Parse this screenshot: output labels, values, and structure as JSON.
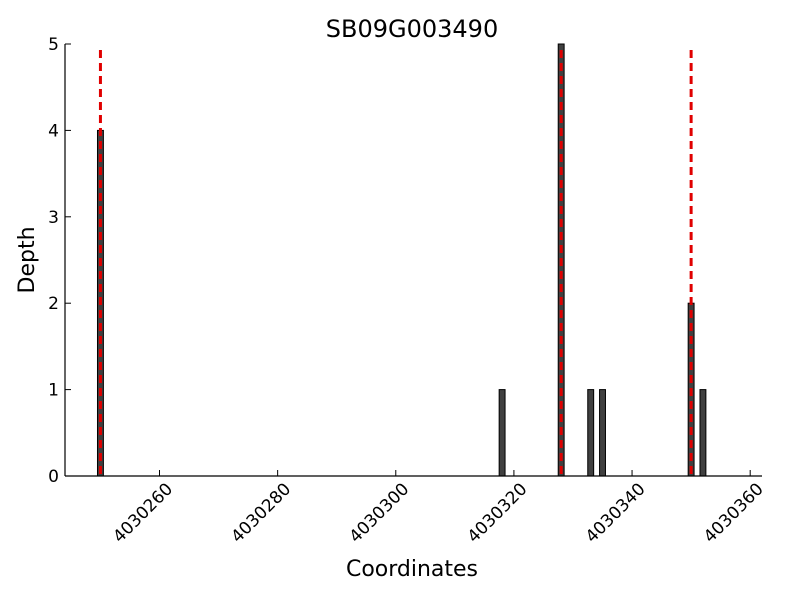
{
  "chart_data": {
    "type": "bar",
    "title": "SB09G003490",
    "xlabel": "Coordinates",
    "ylabel": "Depth",
    "xlim": [
      4030244,
      4030362
    ],
    "ylim": [
      0,
      5
    ],
    "x_ticks": [
      4030260,
      4030280,
      4030300,
      4030320,
      4030340,
      4030360
    ],
    "x_tick_labels": [
      "4030260",
      "4030280",
      "4030300",
      "4030320",
      "4030340",
      "4030360"
    ],
    "y_ticks": [
      0,
      1,
      2,
      3,
      4,
      5
    ],
    "y_tick_labels": [
      "0",
      "1",
      "2",
      "3",
      "4",
      "5"
    ],
    "grid": false,
    "series": [
      {
        "points": [
          {
            "x": 4030250,
            "y": 4
          },
          {
            "x": 4030318,
            "y": 1
          },
          {
            "x": 4030328,
            "y": 5
          },
          {
            "x": 4030333,
            "y": 1
          },
          {
            "x": 4030335,
            "y": 1
          },
          {
            "x": 4030350,
            "y": 2
          },
          {
            "x": 4030352,
            "y": 1
          }
        ]
      }
    ],
    "reference_lines": [
      {
        "x": 4030250
      },
      {
        "x": 4030328
      },
      {
        "x": 4030350
      }
    ],
    "colors": {
      "bar": "#404040",
      "reference_line": "#e00000"
    }
  }
}
